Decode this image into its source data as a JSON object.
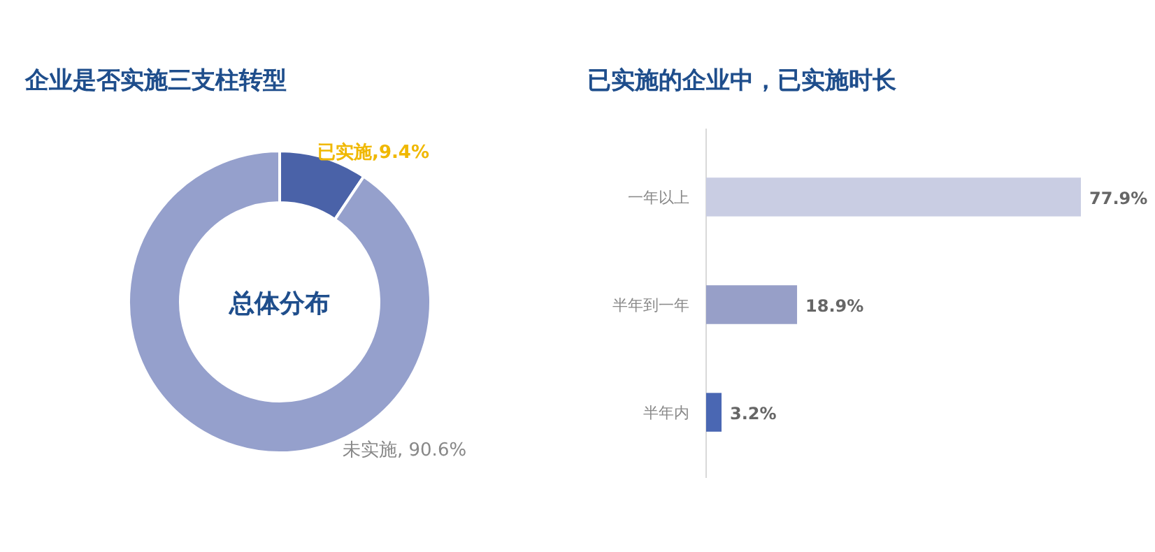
{
  "chart_data": [
    {
      "type": "donut",
      "title": "企业是否实施三支柱转型",
      "categories": [
        "已实施",
        "未实施"
      ],
      "values": [
        9.4,
        90.6
      ],
      "colors": [
        "#4a62a8",
        "#95a0cc"
      ],
      "value_labels": [
        ",9.4%",
        ", 90.6%"
      ],
      "annotations": [
        "总体分布"
      ]
    },
    {
      "type": "bar",
      "orientation": "horizontal",
      "title": "已实施的企业中，已实施时长",
      "categories": [
        "一年以上",
        "半年到一年",
        "半年内"
      ],
      "values": [
        77.9,
        18.9,
        3.2
      ],
      "colors": [
        "#c9cde3",
        "#979fc8",
        "#4a67b3"
      ],
      "value_labels": [
        "77.9%",
        "18.9%",
        "3.2%"
      ]
    }
  ]
}
